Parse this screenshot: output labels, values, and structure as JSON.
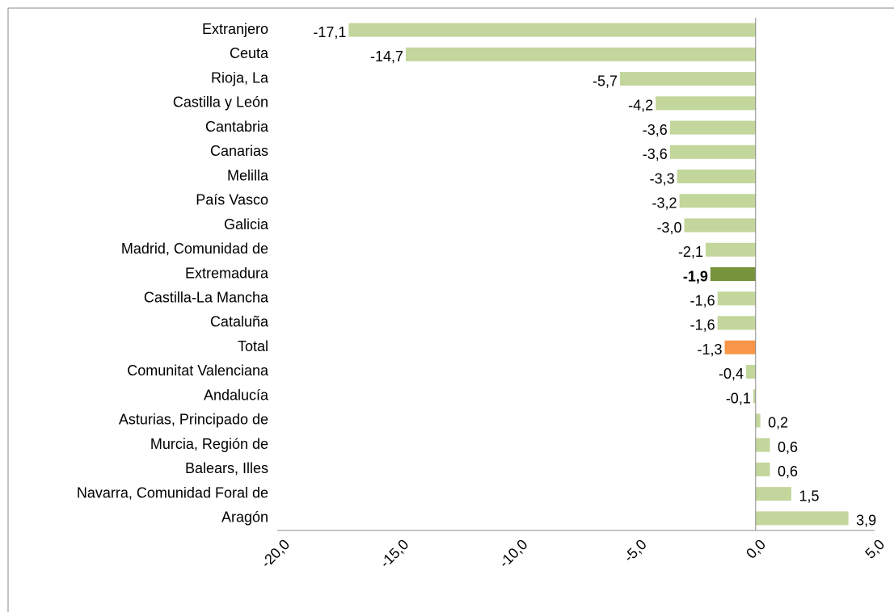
{
  "chart_data": {
    "type": "hbar",
    "categories": [
      "Extranjero",
      "Ceuta",
      "Rioja, La",
      "Castilla y León",
      "Cantabria",
      "Canarias",
      "Melilla",
      "País Vasco",
      "Galicia",
      "Madrid, Comunidad de",
      "Extremadura",
      "Castilla-La Mancha",
      "Cataluña",
      "Total",
      "Comunitat Valenciana",
      "Andalucía",
      "Asturias, Principado de",
      "Murcia, Región de",
      "Balears, Illes",
      "Navarra, Comunidad Foral de",
      "Aragón"
    ],
    "values": [
      -17.1,
      -14.7,
      -5.7,
      -4.2,
      -3.6,
      -3.6,
      -3.3,
      -3.2,
      -3.0,
      -2.1,
      -1.9,
      -1.6,
      -1.6,
      -1.3,
      -0.4,
      -0.1,
      0.2,
      0.6,
      0.6,
      1.5,
      3.9
    ],
    "value_labels": [
      "-17,1",
      "-14,7",
      "-5,7",
      "-4,2",
      "-3,6",
      "-3,6",
      "-3,3",
      "-3,2",
      "-3,0",
      "-2,1",
      "-1,9",
      "-1,6",
      "-1,6",
      "-1,3",
      "-0,4",
      "-0,1",
      "0,2",
      "0,6",
      "0,6",
      "1,5",
      "3,9"
    ],
    "colors": [
      "#c3d69b",
      "#c3d69b",
      "#c3d69b",
      "#c3d69b",
      "#c3d69b",
      "#c3d69b",
      "#c3d69b",
      "#c3d69b",
      "#c3d69b",
      "#c3d69b",
      "#77933c",
      "#c3d69b",
      "#c3d69b",
      "#f79646",
      "#c3d69b",
      "#c3d69b",
      "#c3d69b",
      "#c3d69b",
      "#c3d69b",
      "#c3d69b",
      "#c3d69b"
    ],
    "value_label_bold": [
      false,
      false,
      false,
      false,
      false,
      false,
      false,
      false,
      false,
      false,
      true,
      false,
      false,
      false,
      false,
      false,
      false,
      false,
      false,
      false,
      false
    ],
    "xlim": [
      -20,
      5
    ],
    "xticks": [
      {
        "value": -20,
        "label": "-20,0"
      },
      {
        "value": -15,
        "label": "-15,0"
      },
      {
        "value": -10,
        "label": "-10,0"
      },
      {
        "value": -5,
        "label": "-5,0"
      },
      {
        "value": 0,
        "label": "0,0"
      },
      {
        "value": 5,
        "label": "5,0"
      }
    ]
  }
}
